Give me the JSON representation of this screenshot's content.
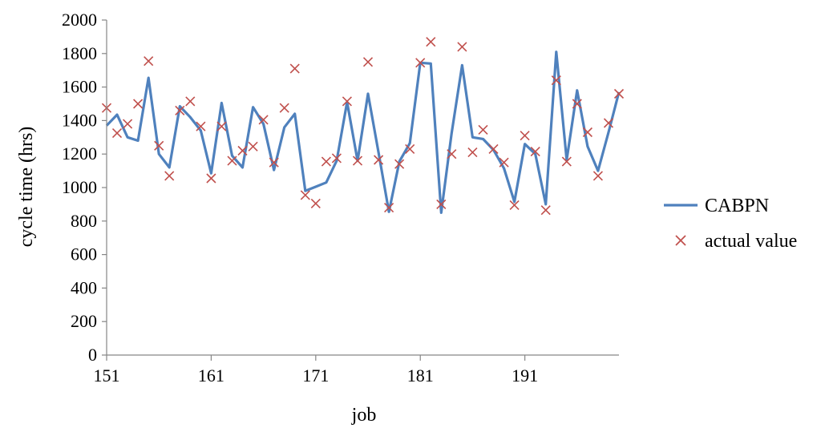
{
  "chart_data": {
    "type": "line",
    "title": "",
    "xlabel": "job",
    "ylabel": "cycle time (hrs)",
    "xlim": [
      151,
      200
    ],
    "ylim": [
      0,
      2000
    ],
    "x_ticks": [
      "151",
      "161",
      "171",
      "181",
      "191"
    ],
    "y_ticks": [
      "0",
      "200",
      "400",
      "600",
      "800",
      "1000",
      "1200",
      "1400",
      "1600",
      "1800",
      "2000"
    ],
    "grid": false,
    "legend_position": "right",
    "series": [
      {
        "name": "CABPN",
        "kind": "line",
        "color": "#4F81BD",
        "x": [
          151,
          152,
          153,
          154,
          155,
          156,
          157,
          158,
          159,
          160,
          161,
          162,
          163,
          164,
          165,
          166,
          167,
          168,
          169,
          170,
          171,
          172,
          173,
          174,
          175,
          176,
          177,
          178,
          179,
          180,
          181,
          182,
          183,
          184,
          185,
          186,
          187,
          188,
          189,
          190,
          191,
          192,
          193,
          194,
          195,
          196,
          197,
          198,
          199,
          200
        ],
        "values": [
          1370,
          1435,
          1300,
          1280,
          1655,
          1200,
          1120,
          1485,
          1420,
          1340,
          1085,
          1505,
          1190,
          1120,
          1480,
          1380,
          1105,
          1360,
          1440,
          980,
          1005,
          1030,
          1160,
          1510,
          1160,
          1560,
          1210,
          855,
          1155,
          1265,
          1745,
          1740,
          850,
          1325,
          1730,
          1300,
          1290,
          1225,
          1115,
          915,
          1260,
          1200,
          900,
          1810,
          1165,
          1580,
          1245,
          1100,
          1330,
          1570
        ]
      },
      {
        "name": "actual value",
        "kind": "scatter",
        "color": "#C0504D",
        "x": [
          151,
          152,
          153,
          154,
          155,
          156,
          157,
          158,
          159,
          160,
          161,
          162,
          163,
          164,
          165,
          166,
          167,
          168,
          169,
          170,
          171,
          172,
          173,
          174,
          175,
          176,
          177,
          178,
          179,
          180,
          181,
          182,
          183,
          184,
          185,
          186,
          187,
          188,
          189,
          190,
          191,
          192,
          193,
          194,
          195,
          196,
          197,
          198,
          199,
          200
        ],
        "values": [
          1475,
          1325,
          1380,
          1500,
          1755,
          1250,
          1070,
          1460,
          1515,
          1365,
          1055,
          1365,
          1160,
          1220,
          1245,
          1405,
          1150,
          1475,
          1710,
          955,
          905,
          1155,
          1175,
          1515,
          1160,
          1750,
          1165,
          880,
          1140,
          1230,
          1745,
          1870,
          900,
          1200,
          1840,
          1210,
          1345,
          1230,
          1150,
          895,
          1310,
          1215,
          865,
          1640,
          1155,
          1500,
          1330,
          1070,
          1385,
          1560
        ]
      }
    ]
  }
}
